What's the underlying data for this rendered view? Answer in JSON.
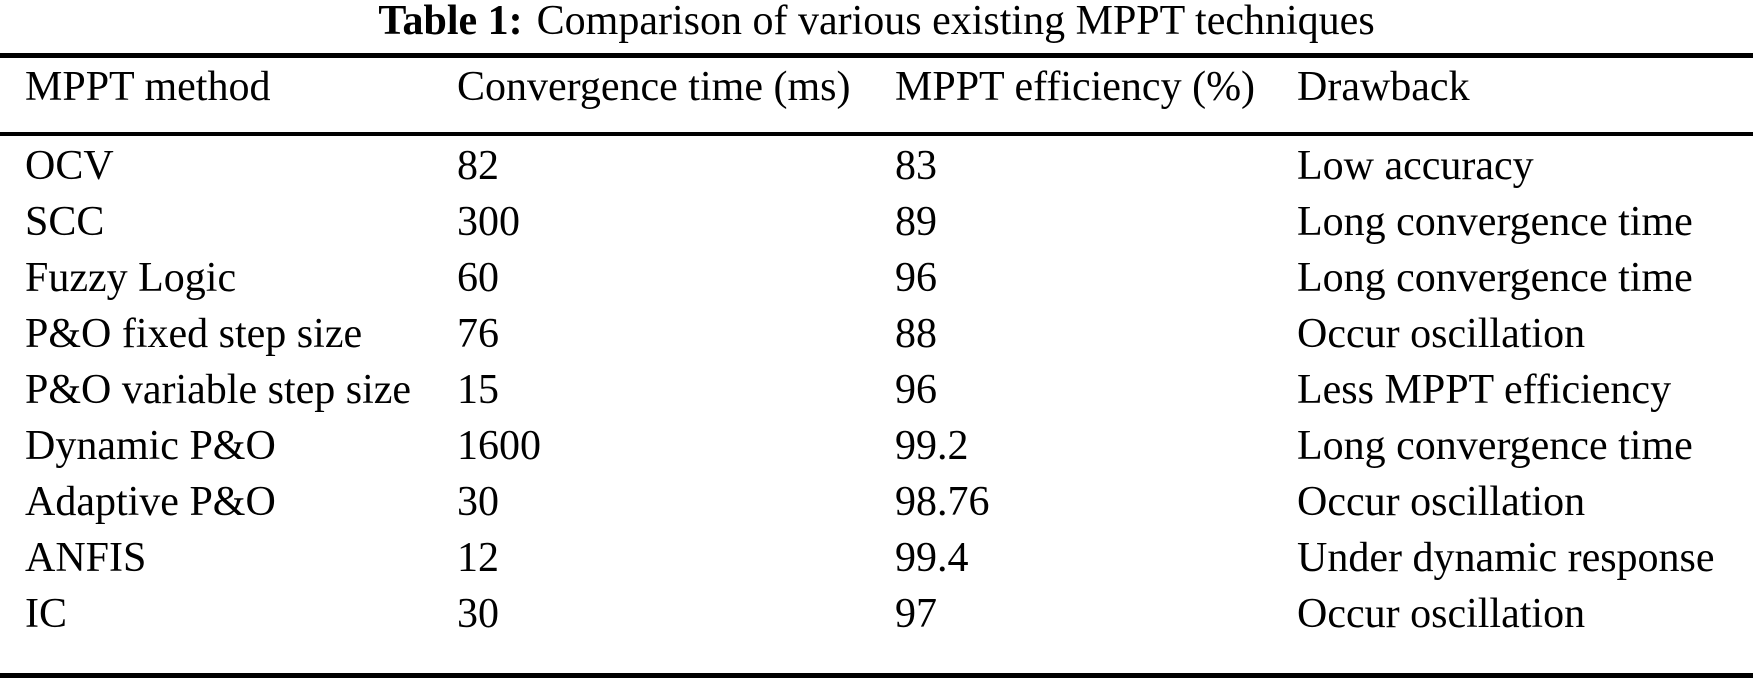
{
  "caption": {
    "label": "Table 1:",
    "text": "Comparison of various existing MPPT techniques"
  },
  "table": {
    "columns": {
      "method": "MPPT method",
      "convergence": "Convergence time (ms)",
      "efficiency": "MPPT efficiency (%)",
      "drawback": "Drawback"
    },
    "rows": [
      {
        "method": "OCV",
        "convergence": "82",
        "efficiency": "83",
        "drawback": "Low accuracy"
      },
      {
        "method": "SCC",
        "convergence": "300",
        "efficiency": "89",
        "drawback": "Long convergence time"
      },
      {
        "method": "Fuzzy Logic",
        "convergence": "60",
        "efficiency": "96",
        "drawback": "Long convergence time"
      },
      {
        "method": "P&O fixed step size",
        "convergence": "76",
        "efficiency": "88",
        "drawback": "Occur oscillation"
      },
      {
        "method": "P&O variable step size",
        "convergence": "15",
        "efficiency": "96",
        "drawback": "Less MPPT efficiency"
      },
      {
        "method": "Dynamic P&O",
        "convergence": "1600",
        "efficiency": "99.2",
        "drawback": "Long convergence time"
      },
      {
        "method": "Adaptive P&O",
        "convergence": "30",
        "efficiency": "98.76",
        "drawback": "Occur oscillation"
      },
      {
        "method": "ANFIS",
        "convergence": "12",
        "efficiency": "99.4",
        "drawback": "Under dynamic response"
      },
      {
        "method": "IC",
        "convergence": "30",
        "efficiency": "97",
        "drawback": "Occur oscillation"
      }
    ]
  },
  "colors": {
    "text": "#000000",
    "background": "#ffffff",
    "rule": "#000000"
  }
}
